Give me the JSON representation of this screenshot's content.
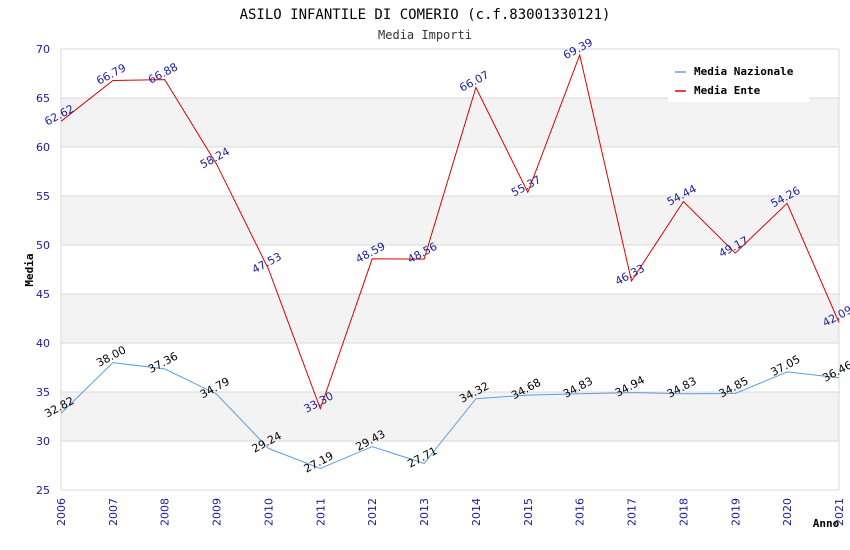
{
  "chart_data": {
    "type": "line",
    "title": "ASILO INFANTILE DI COMERIO (c.f.83001330121)",
    "subtitle": "Media Importi",
    "xlabel": "Anno",
    "ylabel": "Media",
    "ylim": [
      25,
      70
    ],
    "yticks": [
      "25",
      "30",
      "35",
      "40",
      "45",
      "50",
      "55",
      "60",
      "65",
      "70"
    ],
    "x": [
      "2006",
      "2007",
      "2008",
      "2009",
      "2010",
      "2011",
      "2012",
      "2013",
      "2014",
      "2015",
      "2016",
      "2017",
      "2018",
      "2019",
      "2020",
      "2021"
    ],
    "legend_position": "top-right",
    "grid": true,
    "series": [
      {
        "name": "Media Nazionale",
        "color": "#5aa0e0",
        "label_color": "#000000",
        "values": [
          32.82,
          38.0,
          37.36,
          34.79,
          29.24,
          27.19,
          29.43,
          27.71,
          34.32,
          34.68,
          34.83,
          34.94,
          34.83,
          34.85,
          37.05,
          36.46
        ],
        "labels": [
          "32.82",
          "38.00",
          "37.36",
          "34.79",
          "29.24",
          "27.19",
          "29.43",
          "27.71",
          "34.32",
          "34.68",
          "34.83",
          "34.94",
          "34.83",
          "34.85",
          "37.05",
          "36.46"
        ]
      },
      {
        "name": "Media Ente",
        "color": "#e00000",
        "label_color": "#1a1a9c",
        "values": [
          62.62,
          66.79,
          66.88,
          58.24,
          47.53,
          33.3,
          48.59,
          48.56,
          66.07,
          55.37,
          69.39,
          46.33,
          54.44,
          49.17,
          54.26,
          42.09
        ],
        "labels": [
          "62.62",
          "66.79",
          "66.88",
          "58.24",
          "47.53",
          "33.30",
          "48.59",
          "48.56",
          "66.07",
          "55.37",
          "69.39",
          "46.33",
          "54.44",
          "49.17",
          "54.26",
          "42.09"
        ]
      }
    ],
    "colors": {
      "band": "#f3f3f3",
      "gridline": "#d8d8d8",
      "axis": "#999999"
    }
  }
}
